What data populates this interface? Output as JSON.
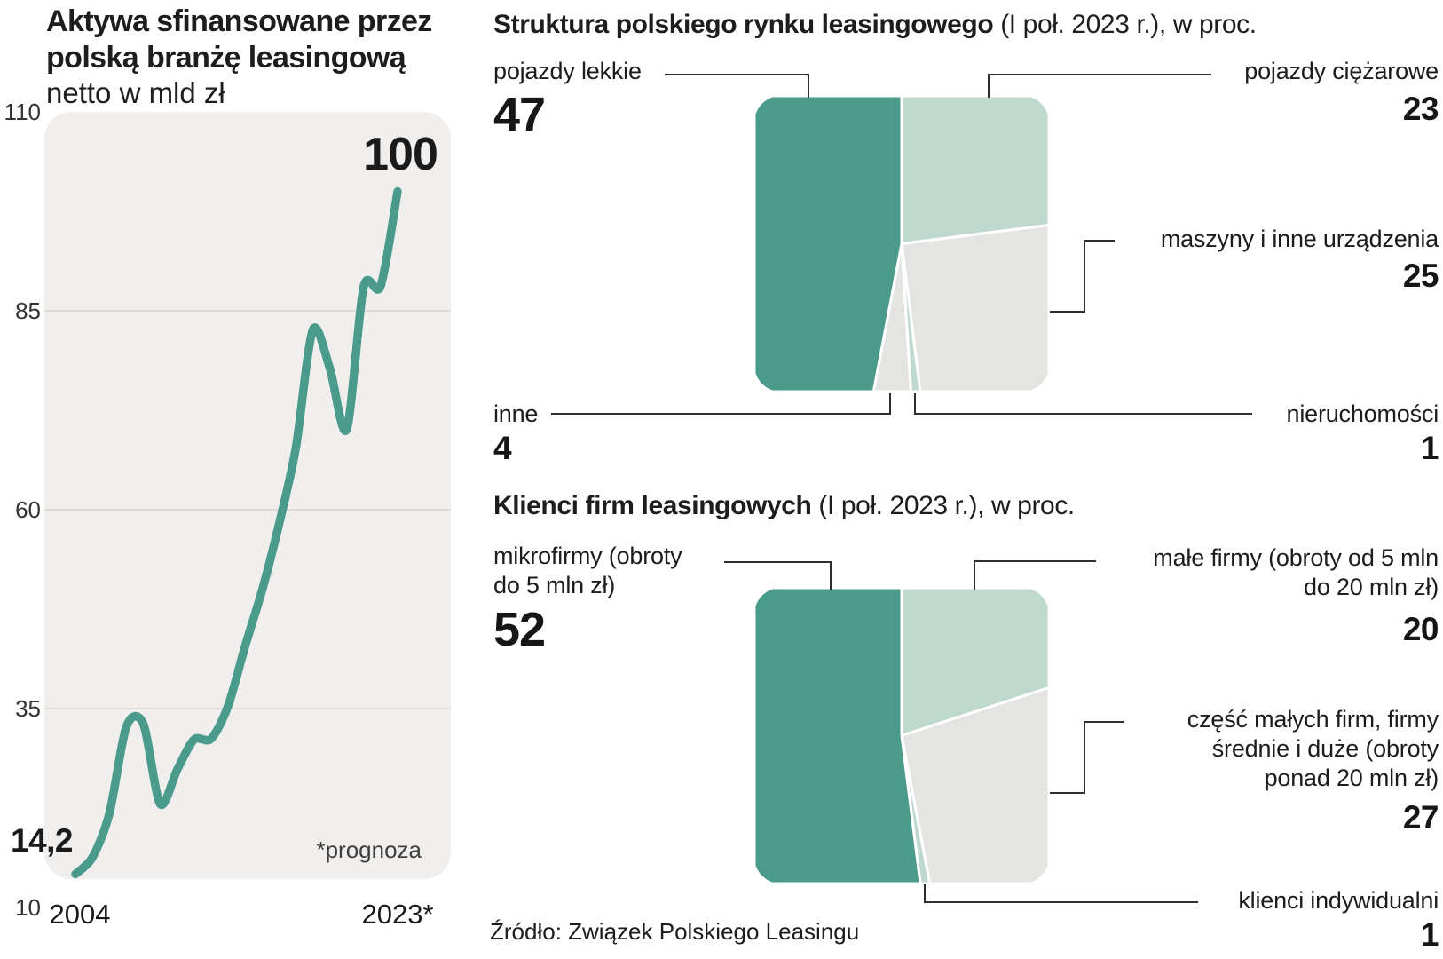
{
  "colors": {
    "teal": "#4b9b8c",
    "mint": "#bfd9ce",
    "gray": "#e4e4e2",
    "plot_bg": "#f0efed",
    "grid": "#dcdbd6",
    "connector": "#2e2e2e",
    "text": "#1a1a1a"
  },
  "left_chart": {
    "title_line1": "Aktywa sfinansowane przez",
    "title_line2": "polską branżę leasingową",
    "subtitle": "netto w mld zł",
    "x_first": "2004",
    "x_last": "2023*",
    "footnote": "*prognoza",
    "start_label": "14,2",
    "end_label": "100"
  },
  "structure_chart": {
    "title_bold": "Struktura polskiego rynku leasingowego",
    "title_rest": " (I poł. 2023 r.), w proc.",
    "slices": [
      {
        "label": "pojazdy ciężarowe",
        "value": 23,
        "color": "#bfd9ce"
      },
      {
        "label": "maszyny i inne urządzenia",
        "value": 25,
        "color": "#e4e4e2"
      },
      {
        "label": "nieruchomości",
        "value": 1,
        "color": "#bfd9ce"
      },
      {
        "label": "inne",
        "value": 4,
        "color": "#e4e4e2"
      },
      {
        "label": "pojazdy lekkie",
        "value": 47,
        "color": "#4b9b8c"
      }
    ]
  },
  "clients_chart": {
    "title_bold": "Klienci firm leasingowych",
    "title_rest": " (I poł. 2023 r.), w proc.",
    "slices": [
      {
        "label": "małe firmy (obroty od 5 mln do 20 mln zł)",
        "value": 20,
        "color": "#bfd9ce",
        "lines": [
          "małe firmy (obroty od 5 mln",
          "do 20 mln zł)"
        ]
      },
      {
        "label": "część małych firm, firmy średnie i duże (obroty ponad 20 mln zł)",
        "value": 27,
        "color": "#e4e4e2",
        "lines": [
          "część małych firm, firmy",
          "średnie i duże (obroty",
          "ponad 20 mln zł)"
        ]
      },
      {
        "label": "klienci indywidualni",
        "value": 1,
        "color": "#bfd9ce",
        "lines": [
          "klienci indywidualni"
        ]
      },
      {
        "label": "mikrofirmy (obroty do 5 mln zł)",
        "value": 52,
        "color": "#4b9b8c",
        "lines": [
          "mikrofirmy (obroty",
          "do 5 mln zł)"
        ]
      }
    ]
  },
  "source": "Źródło: Związek Polskiego Leasingu",
  "chart_data": [
    {
      "type": "line",
      "title": "Aktywa sfinansowane przez polską branżę leasingową",
      "ylabel": "netto w mld zł",
      "x": [
        2004,
        2005,
        2006,
        2007,
        2008,
        2009,
        2010,
        2011,
        2012,
        2013,
        2014,
        2015,
        2016,
        2017,
        2018,
        2019,
        2020,
        2021,
        2022,
        2023
      ],
      "values": [
        14.2,
        16.3,
        21.8,
        32.7,
        33.1,
        23.0,
        27.3,
        31.1,
        31.2,
        35.3,
        42.8,
        49.8,
        58.1,
        67.8,
        82.6,
        77.8,
        70.1,
        88.0,
        88.1,
        100
      ],
      "ylim": [
        10,
        110
      ],
      "yticks": [
        110,
        85,
        60,
        35,
        10
      ],
      "xtick_labels": [
        "2004",
        "2023*"
      ],
      "grid": true,
      "annotations": {
        "first_point": "14,2",
        "last_point": "100",
        "footnote": "*prognoza",
        "last_is_forecast": true
      }
    },
    {
      "type": "pie",
      "title": "Struktura polskiego rynku leasingowego (I poł. 2023 r.), w proc.",
      "categories": [
        "pojazdy lekkie",
        "pojazdy ciężarowe",
        "maszyny i inne urządzenia",
        "inne",
        "nieruchomości"
      ],
      "values": [
        47,
        23,
        25,
        4,
        1
      ],
      "shape": "rounded-square"
    },
    {
      "type": "pie",
      "title": "Klienci firm leasingowych (I poł. 2023 r.), w proc.",
      "categories": [
        "mikrofirmy (obroty do 5 mln zł)",
        "małe firmy (obroty od 5 mln do 20 mln zł)",
        "część małych firm, firmy średnie i duże (obroty ponad 20 mln zł)",
        "klienci indywidualni"
      ],
      "values": [
        52,
        20,
        27,
        1
      ],
      "shape": "rounded-square"
    }
  ]
}
